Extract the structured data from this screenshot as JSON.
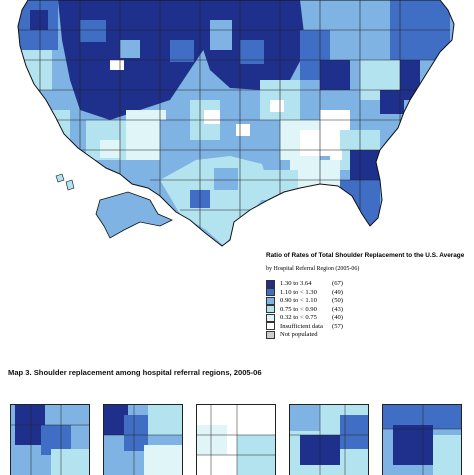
{
  "legend": {
    "title": "Ratio of Rates of Total Shoulder Replacement to the U.S. Average",
    "subtitle": "by Hospital Referral Region (2005-06)",
    "items": [
      {
        "range": "1.30 to   3.64",
        "count": "(67)",
        "color": "#1f2f8c"
      },
      {
        "range": "1.10 to < 1.30",
        "count": "(49)",
        "color": "#3f6ec4"
      },
      {
        "range": "0.90 to < 1.10",
        "count": "(50)",
        "color": "#7fb3e4"
      },
      {
        "range": "0.75 to < 0.90",
        "count": "(43)",
        "color": "#b4e3f0"
      },
      {
        "range": "0.32 to < 0.75",
        "count": "(40)",
        "color": "#dff5f7"
      },
      {
        "range": "Insufficient data",
        "count": "(57)",
        "color": "#ffffff"
      },
      {
        "range": "Not populated",
        "count": "",
        "color": "#cccccc"
      }
    ]
  },
  "caption": "Map 3. Shoulder replacement among hospital referral regions, 2005-06"
}
